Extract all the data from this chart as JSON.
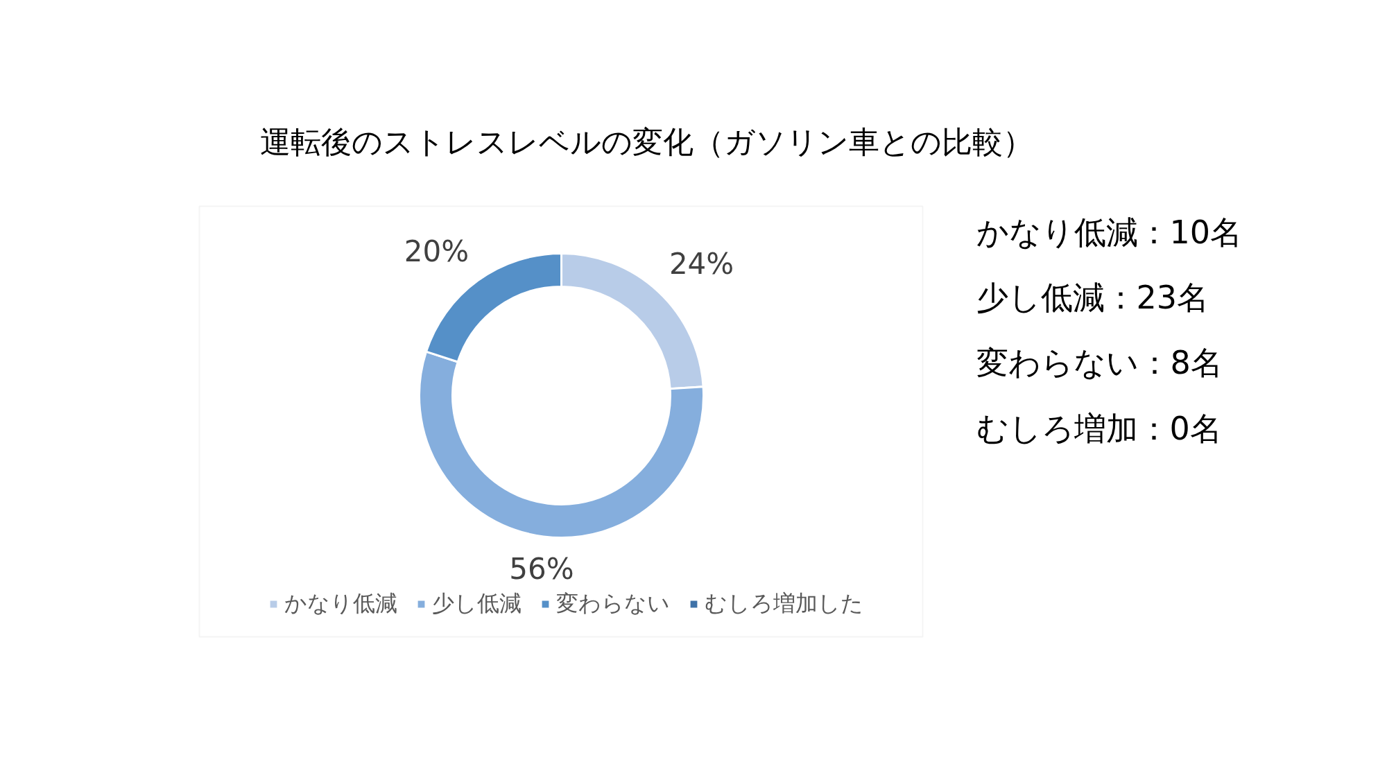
{
  "chart_data": {
    "type": "donut",
    "title": "運転後のストレスレベルの変化（ガソリン車との比較）",
    "categories": [
      "かなり低減",
      "少し低減",
      "変わらない",
      "むしろ増加した"
    ],
    "values": [
      24,
      56,
      20,
      0
    ],
    "colors": [
      "#b8cce8",
      "#85aedd",
      "#5590c8",
      "#3f72a8"
    ],
    "value_labels": [
      "24%",
      "56%",
      "20%",
      null
    ],
    "legend": "bottom",
    "annotations": [
      "かなり低減：10名",
      "少し低減：23名",
      "変わらない：8名",
      "むしろ増加：0名"
    ]
  }
}
